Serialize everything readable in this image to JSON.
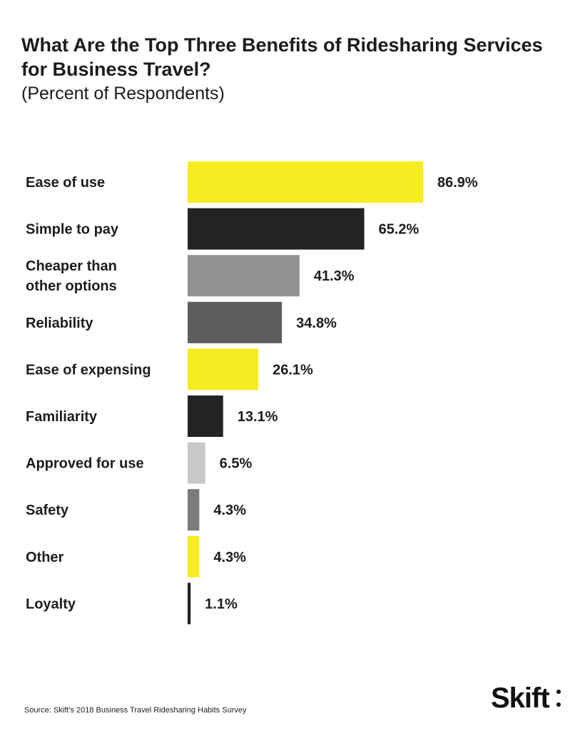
{
  "header": {
    "title": "What Are the Top Three Benefits of Ridesharing Services for Business Travel?",
    "subtitle": "(Percent of Respondents)"
  },
  "footer": {
    "source": "Source: Skift's 2018 Business Travel Ridesharing Habits Survey",
    "logo": "Skift"
  },
  "chart_data": {
    "type": "bar",
    "orientation": "horizontal",
    "title": "What Are the Top Three Benefits of Ridesharing Services for Business Travel?",
    "subtitle": "(Percent of Respondents)",
    "categories": [
      "Ease of use",
      "Simple to pay",
      "Cheaper than other options",
      "Reliability",
      "Ease of expensing",
      "Familiarity",
      "Approved for use",
      "Safety",
      "Other",
      "Loyalty"
    ],
    "category_lines": [
      [
        "Ease of use"
      ],
      [
        "Simple to pay"
      ],
      [
        "Cheaper than",
        "other options"
      ],
      [
        "Reliability"
      ],
      [
        "Ease of expensing"
      ],
      [
        "Familiarity"
      ],
      [
        "Approved for use"
      ],
      [
        "Safety"
      ],
      [
        "Other"
      ],
      [
        "Loyalty"
      ]
    ],
    "values": [
      86.9,
      65.2,
      41.3,
      34.8,
      26.1,
      13.1,
      6.5,
      4.3,
      4.3,
      1.1
    ],
    "value_labels": [
      "86.9%",
      "65.2%",
      "41.3%",
      "34.8%",
      "26.1%",
      "13.1%",
      "6.5%",
      "4.3%",
      "4.3%",
      "1.1%"
    ],
    "colors": [
      "#f7ec21",
      "#232323",
      "#929292",
      "#5e5e60",
      "#f7ec21",
      "#232323",
      "#c8c8c8",
      "#7b7b7b",
      "#f7ec21",
      "#232323"
    ],
    "grid": false,
    "legend": "none"
  }
}
